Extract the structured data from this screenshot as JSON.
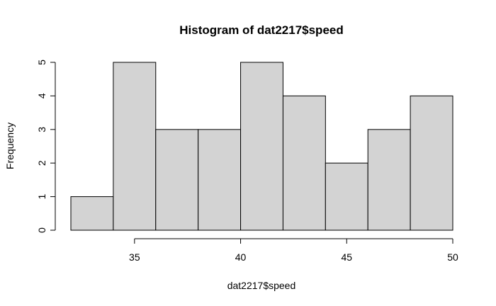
{
  "chart_data": {
    "type": "bar",
    "title": "Histogram of dat2217$speed",
    "xlabel": "dat2217$speed",
    "ylabel": "Frequency",
    "bins": [
      {
        "start": 32,
        "end": 34,
        "count": 1
      },
      {
        "start": 34,
        "end": 36,
        "count": 5
      },
      {
        "start": 36,
        "end": 38,
        "count": 3
      },
      {
        "start": 38,
        "end": 40,
        "count": 3
      },
      {
        "start": 40,
        "end": 42,
        "count": 5
      },
      {
        "start": 42,
        "end": 44,
        "count": 4
      },
      {
        "start": 44,
        "end": 46,
        "count": 2
      },
      {
        "start": 46,
        "end": 48,
        "count": 3
      },
      {
        "start": 48,
        "end": 50,
        "count": 4
      }
    ],
    "xticks": [
      "35",
      "40",
      "45",
      "50"
    ],
    "yticks": [
      "0",
      "1",
      "2",
      "3",
      "4",
      "5"
    ],
    "xlim": [
      32,
      50
    ],
    "ylim": [
      0,
      5
    ],
    "bar_fill": "#d3d3d3",
    "bar_stroke": "#000000",
    "grid": false,
    "legend": "none"
  }
}
